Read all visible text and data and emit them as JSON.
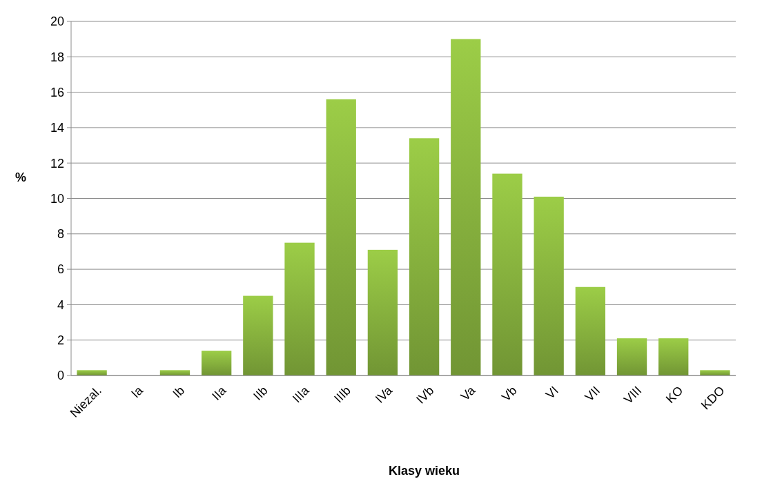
{
  "chart_data": {
    "type": "bar",
    "xlabel": "Klasy wieku",
    "ylabel": "%",
    "categories": [
      "Niezal.",
      "Ia",
      "Ib",
      "IIa",
      "IIb",
      "IIIa",
      "IIIb",
      "IVa",
      "IVb",
      "Va",
      "Vb",
      "VI",
      "VII",
      "VIII",
      "KO",
      "KDO"
    ],
    "values": [
      0.3,
      0,
      0.3,
      1.4,
      4.5,
      7.5,
      15.6,
      7.1,
      13.4,
      19,
      11.4,
      10.1,
      5,
      2.1,
      2.1,
      0.3
    ],
    "color": "#8cb840",
    "ylim": [
      0,
      20
    ],
    "yticks": [
      0,
      2,
      4,
      6,
      8,
      10,
      12,
      14,
      16,
      18,
      20
    ],
    "grid": "y"
  }
}
